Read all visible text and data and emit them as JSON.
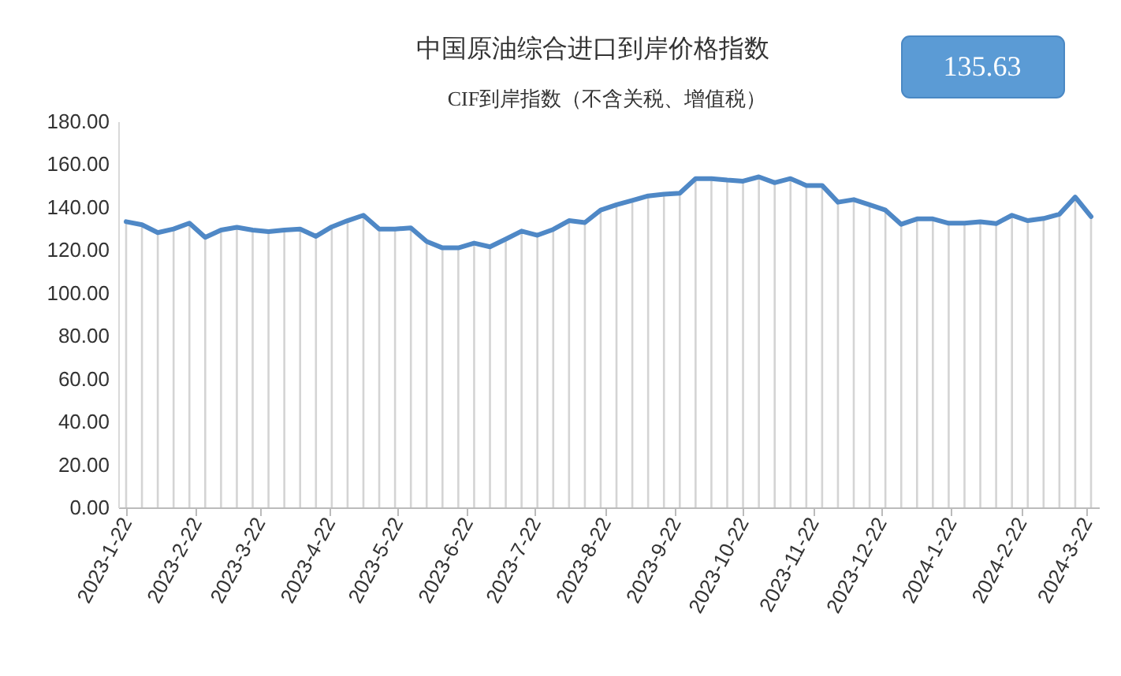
{
  "chart_data": {
    "type": "line",
    "title": "中国原油综合进口到岸价格指数",
    "subtitle": "CIF到岸指数（不含关税、增值税）",
    "annotations": [
      "135.63"
    ],
    "x": [
      "2023-01-22",
      "2023-01-29",
      "2023-02-05",
      "2023-02-12",
      "2023-02-19",
      "2023-02-26",
      "2023-03-05",
      "2023-03-12",
      "2023-03-19",
      "2023-03-26",
      "2023-04-02",
      "2023-04-09",
      "2023-04-16",
      "2023-04-23",
      "2023-04-30",
      "2023-05-07",
      "2023-05-14",
      "2023-05-21",
      "2023-05-28",
      "2023-06-04",
      "2023-06-11",
      "2023-06-18",
      "2023-06-25",
      "2023-07-02",
      "2023-07-09",
      "2023-07-16",
      "2023-07-23",
      "2023-07-30",
      "2023-08-06",
      "2023-08-13",
      "2023-08-20",
      "2023-08-27",
      "2023-09-03",
      "2023-09-10",
      "2023-09-17",
      "2023-09-24",
      "2023-10-01",
      "2023-10-08",
      "2023-10-15",
      "2023-10-22",
      "2023-10-29",
      "2023-11-05",
      "2023-11-12",
      "2023-11-19",
      "2023-11-26",
      "2023-12-03",
      "2023-12-10",
      "2023-12-17",
      "2023-12-24",
      "2023-12-31",
      "2024-01-07",
      "2024-01-14",
      "2024-01-21",
      "2024-01-28",
      "2024-02-04",
      "2024-02-11",
      "2024-02-18",
      "2024-02-25",
      "2024-03-03",
      "2024-03-10",
      "2024-03-17",
      "2024-03-24"
    ],
    "series": [
      {
        "type": "bar",
        "color": "#d4d4d4",
        "values": [
          133.2,
          131.8,
          128.1,
          129.8,
          132.5,
          125.9,
          129.3,
          130.6,
          129.3,
          128.6,
          129.3,
          129.8,
          126.4,
          130.8,
          133.7,
          136.2,
          129.8,
          129.8,
          130.3,
          124.0,
          121.0,
          121.0,
          123.2,
          121.5,
          125.1,
          128.8,
          126.9,
          129.6,
          133.7,
          132.8,
          138.6,
          141.1,
          143.1,
          145.2,
          146.0,
          146.5,
          153.3,
          153.3,
          152.6,
          152.1,
          154.1,
          151.4,
          153.3,
          150.1,
          150.1,
          142.3,
          143.5,
          141.1,
          138.6,
          132.0,
          134.5,
          134.5,
          132.5,
          132.5,
          133.2,
          132.3,
          136.2,
          133.7,
          134.7,
          136.7,
          144.7,
          135.6
        ]
      },
      {
        "color": "#4f88c6",
        "values": [
          133.2,
          131.8,
          128.1,
          129.8,
          132.5,
          125.9,
          129.3,
          130.6,
          129.3,
          128.6,
          129.3,
          129.8,
          126.4,
          130.8,
          133.7,
          136.2,
          129.8,
          129.8,
          130.3,
          124.0,
          121.0,
          121.0,
          123.2,
          121.5,
          125.1,
          128.8,
          126.9,
          129.6,
          133.7,
          132.8,
          138.6,
          141.1,
          143.1,
          145.2,
          146.0,
          146.5,
          153.3,
          153.3,
          152.6,
          152.1,
          154.1,
          151.4,
          153.3,
          150.1,
          150.1,
          142.3,
          143.5,
          141.1,
          138.6,
          132.0,
          134.5,
          134.5,
          132.5,
          132.5,
          133.2,
          132.3,
          136.2,
          133.7,
          134.7,
          136.7,
          144.7,
          135.6
        ]
      }
    ],
    "xlim": [
      "2023-01-22",
      "2024-03-24"
    ],
    "xticks": [
      {
        "value": "2023-01-22",
        "label": "2023-1-22"
      },
      {
        "value": "2023-02-22",
        "label": "2023-2-22"
      },
      {
        "value": "2023-03-22",
        "label": "2023-3-22"
      },
      {
        "value": "2023-04-22",
        "label": "2023-4-22"
      },
      {
        "value": "2023-05-22",
        "label": "2023-5-22"
      },
      {
        "value": "2023-06-22",
        "label": "2023-6-22"
      },
      {
        "value": "2023-07-22",
        "label": "2023-7-22"
      },
      {
        "value": "2023-08-22",
        "label": "2023-8-22"
      },
      {
        "value": "2023-09-22",
        "label": "2023-9-22"
      },
      {
        "value": "2023-10-22",
        "label": "2023-10-22"
      },
      {
        "value": "2023-11-22",
        "label": "2023-11-22"
      },
      {
        "value": "2023-12-22",
        "label": "2023-12-22"
      },
      {
        "value": "2024-01-22",
        "label": "2024-1-22"
      },
      {
        "value": "2024-02-22",
        "label": "2024-2-22"
      },
      {
        "value": "2024-03-22",
        "label": "2024-3-22"
      }
    ],
    "ylim": [
      0,
      180
    ],
    "yticks": [
      {
        "value": 0,
        "label": "0.00"
      },
      {
        "value": 20,
        "label": "20.00"
      },
      {
        "value": 40,
        "label": "40.00"
      },
      {
        "value": 60,
        "label": "60.00"
      },
      {
        "value": 80,
        "label": "80.00"
      },
      {
        "value": 100,
        "label": "100.00"
      },
      {
        "value": 120,
        "label": "120.00"
      },
      {
        "value": 140,
        "label": "140.00"
      },
      {
        "value": 160,
        "label": "160.00"
      },
      {
        "value": 180,
        "label": "180.00"
      }
    ],
    "marker": "none",
    "line_style": "solid"
  }
}
